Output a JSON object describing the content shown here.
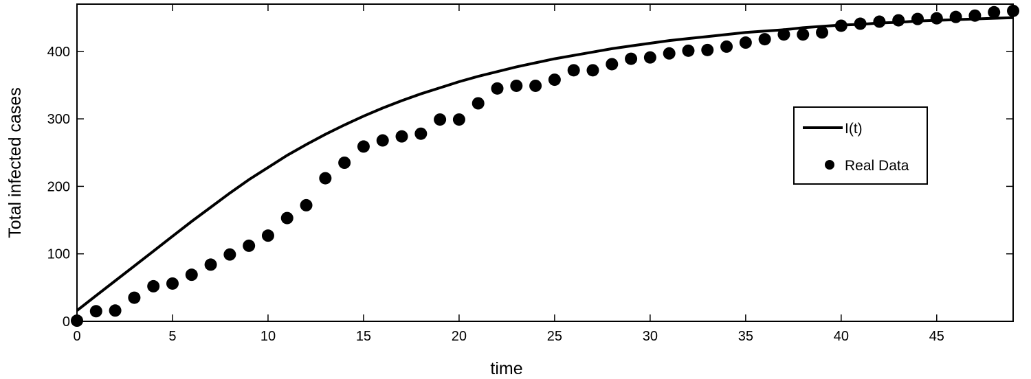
{
  "chart_data": {
    "type": "line",
    "title": "",
    "xlabel": "time",
    "ylabel": "Total infected cases",
    "xlim": [
      0,
      49
    ],
    "ylim": [
      0,
      470
    ],
    "xticks": [
      0,
      5,
      10,
      15,
      20,
      25,
      30,
      35,
      40,
      45
    ],
    "yticks": [
      0,
      100,
      200,
      300,
      400
    ],
    "grid": false,
    "legend_position": "right",
    "series": [
      {
        "name": "I(t)",
        "kind": "line",
        "color": "#000000",
        "x": [
          0,
          1,
          2,
          3,
          4,
          5,
          6,
          7,
          8,
          9,
          10,
          11,
          12,
          13,
          14,
          15,
          16,
          17,
          18,
          19,
          20,
          21,
          22,
          23,
          24,
          25,
          26,
          27,
          28,
          29,
          30,
          31,
          32,
          33,
          34,
          35,
          36,
          37,
          38,
          39,
          40,
          41,
          42,
          43,
          44,
          45,
          46,
          47,
          48,
          49
        ],
        "y": [
          16,
          38,
          60,
          82,
          104,
          126,
          148,
          169,
          190,
          210,
          228,
          246,
          262,
          277,
          291,
          304,
          316,
          327,
          337,
          346,
          355,
          363,
          370,
          377,
          383,
          389,
          394,
          399,
          404,
          408,
          412,
          416,
          419,
          422,
          425,
          428,
          430,
          432,
          435,
          437,
          439,
          440,
          442,
          443,
          445,
          446,
          447,
          448,
          449,
          450
        ]
      },
      {
        "name": "Real Data",
        "kind": "scatter",
        "color": "#000000",
        "x": [
          0,
          1,
          2,
          3,
          4,
          5,
          6,
          7,
          8,
          9,
          10,
          11,
          12,
          13,
          14,
          15,
          16,
          17,
          18,
          19,
          20,
          21,
          22,
          23,
          24,
          25,
          26,
          27,
          28,
          29,
          30,
          31,
          32,
          33,
          34,
          35,
          36,
          37,
          38,
          39,
          40,
          41,
          42,
          43,
          44,
          45,
          46,
          47,
          48,
          49
        ],
        "y": [
          1,
          15,
          16,
          35,
          52,
          56,
          69,
          84,
          99,
          112,
          127,
          153,
          172,
          212,
          235,
          259,
          268,
          274,
          278,
          299,
          299,
          323,
          345,
          349,
          349,
          358,
          372,
          372,
          381,
          389,
          391,
          397,
          401,
          402,
          407,
          413,
          418,
          425,
          425,
          428,
          438,
          441,
          444,
          446,
          448,
          449,
          451,
          453,
          458,
          460
        ]
      }
    ]
  }
}
